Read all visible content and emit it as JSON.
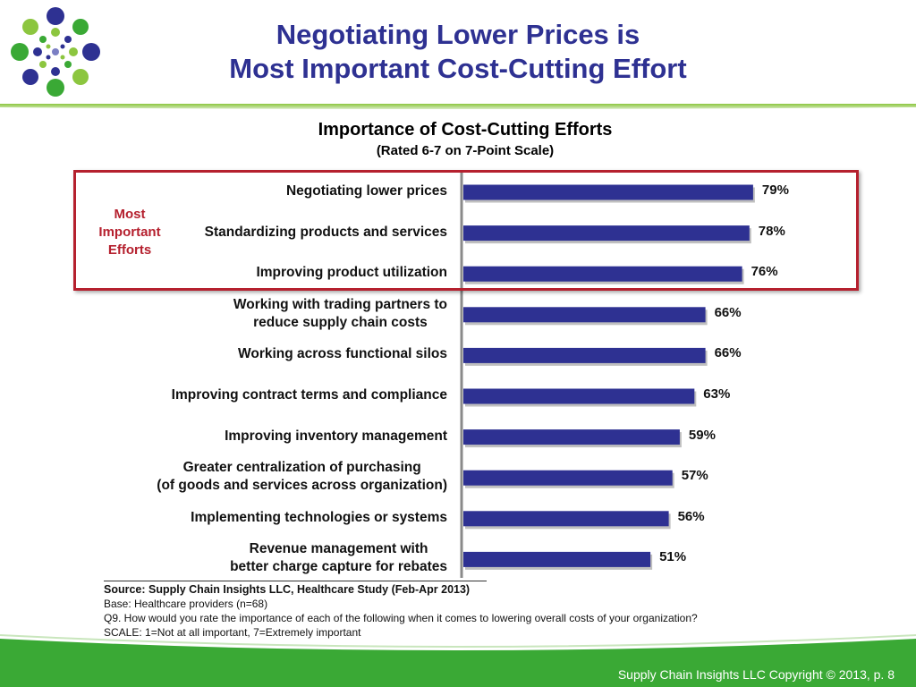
{
  "slide": {
    "title_line1": "Negotiating Lower Prices is",
    "title_line2": "Most Important Cost-Cutting Effort",
    "copyright": "Supply Chain Insights LLC Copyright © 2013, p. 8"
  },
  "highlight": {
    "label_lines": [
      "Most",
      "Important",
      "Efforts"
    ]
  },
  "colors": {
    "bar": "#2e3192",
    "title": "#2e3192",
    "highlight": "#b5202e",
    "footer_green": "#3aa935",
    "axis": "#8a8a8a"
  },
  "chart_data": {
    "type": "bar",
    "orientation": "horizontal",
    "title": "Importance of Cost-Cutting Efforts",
    "subtitle": "(Rated 6-7 on 7-Point Scale)",
    "categories": [
      [
        "Negotiating lower prices"
      ],
      [
        "Standardizing products and services"
      ],
      [
        "Improving product utilization"
      ],
      [
        "Working with trading partners to",
        "reduce supply chain costs"
      ],
      [
        "Working across functional silos"
      ],
      [
        "Improving contract terms and compliance"
      ],
      [
        "Improving inventory management"
      ],
      [
        "Greater centralization of purchasing",
        "(of goods and services across organization)"
      ],
      [
        "Implementing technologies or systems"
      ],
      [
        "Revenue management with",
        "better charge capture for rebates"
      ]
    ],
    "values": [
      79,
      78,
      76,
      66,
      66,
      63,
      59,
      57,
      56,
      51
    ],
    "value_labels": [
      "79%",
      "78%",
      "76%",
      "66%",
      "66%",
      "63%",
      "59%",
      "57%",
      "56%",
      "51%"
    ],
    "value_unit": "%",
    "highlighted_count": 3,
    "grid": false,
    "legend": "none"
  },
  "source": {
    "line1": "Source:  Supply Chain Insights LLC, Healthcare Study (Feb-Apr 2013)",
    "line2": "Base:  Healthcare providers (n=68)",
    "line3": "Q9. How would you rate the importance of each of the following when it comes to lowering overall costs of your organization?",
    "line4": "SCALE:  1=Not at all important, 7=Extremely important"
  }
}
